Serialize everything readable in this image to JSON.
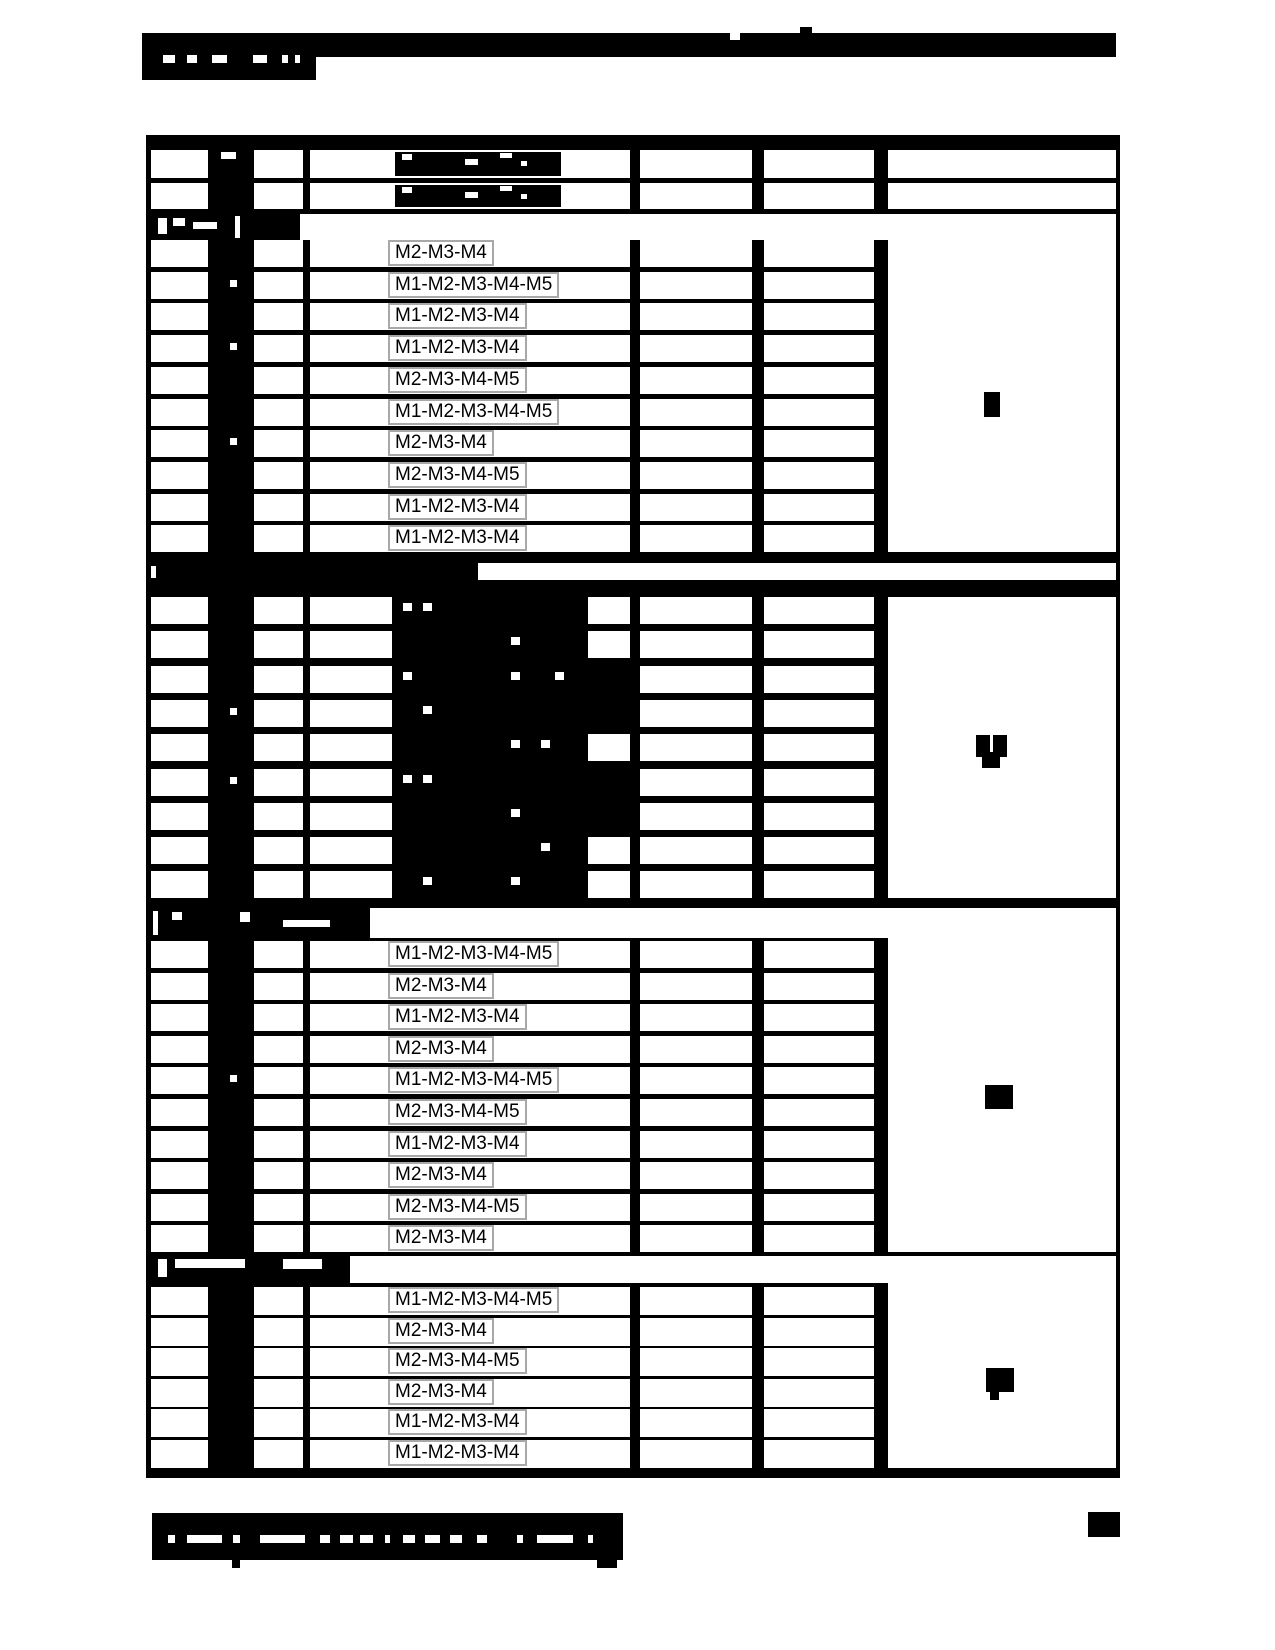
{
  "document": {
    "kind": "redacted-scanned-page",
    "title_redacted": true,
    "footnote_redacted": true,
    "visible_text_only": "module sequence values in one table column"
  },
  "colors": {
    "redaction": "#000000",
    "page_background": "#ffffff",
    "label_box_border": "#a8a8a8",
    "label_text": "#000000"
  },
  "table": {
    "header_rows": 2,
    "header_text_redacted": true,
    "columns_count": 7,
    "column_2_fully_redacted": true,
    "sections": [
      {
        "index": 1,
        "title_redacted": true,
        "right_note_redacted": true,
        "rows": [
          "M2-M3-M4",
          "M1-M2-M3-M4-M5",
          "M1-M2-M3-M4",
          "M1-M2-M3-M4",
          "M2-M3-M4-M5",
          "M1-M2-M3-M4-M5",
          "M2-M3-M4",
          "M2-M3-M4-M5",
          "M1-M2-M3-M4",
          "M1-M2-M3-M4"
        ]
      },
      {
        "index": 2,
        "title_redacted": true,
        "right_note_redacted": true,
        "rows": [
          "",
          "",
          "",
          "",
          "",
          "",
          "",
          "",
          ""
        ]
      },
      {
        "index": 3,
        "title_redacted": true,
        "right_note_redacted": true,
        "rows": [
          "M1-M2-M3-M4-M5",
          "M2-M3-M4",
          "M1-M2-M3-M4",
          "M2-M3-M4",
          "M1-M2-M3-M4-M5",
          "M2-M3-M4-M5",
          "M1-M2-M3-M4",
          "M2-M3-M4",
          "M2-M3-M4-M5",
          "M2-M3-M4"
        ]
      },
      {
        "index": 4,
        "title_redacted": true,
        "right_note_redacted": true,
        "rows": [
          "M1-M2-M3-M4-M5",
          "M2-M3-M4",
          "M2-M3-M4-M5",
          "M2-M3-M4",
          "M1-M2-M3-M4",
          "M1-M2-M3-M4"
        ]
      }
    ]
  }
}
